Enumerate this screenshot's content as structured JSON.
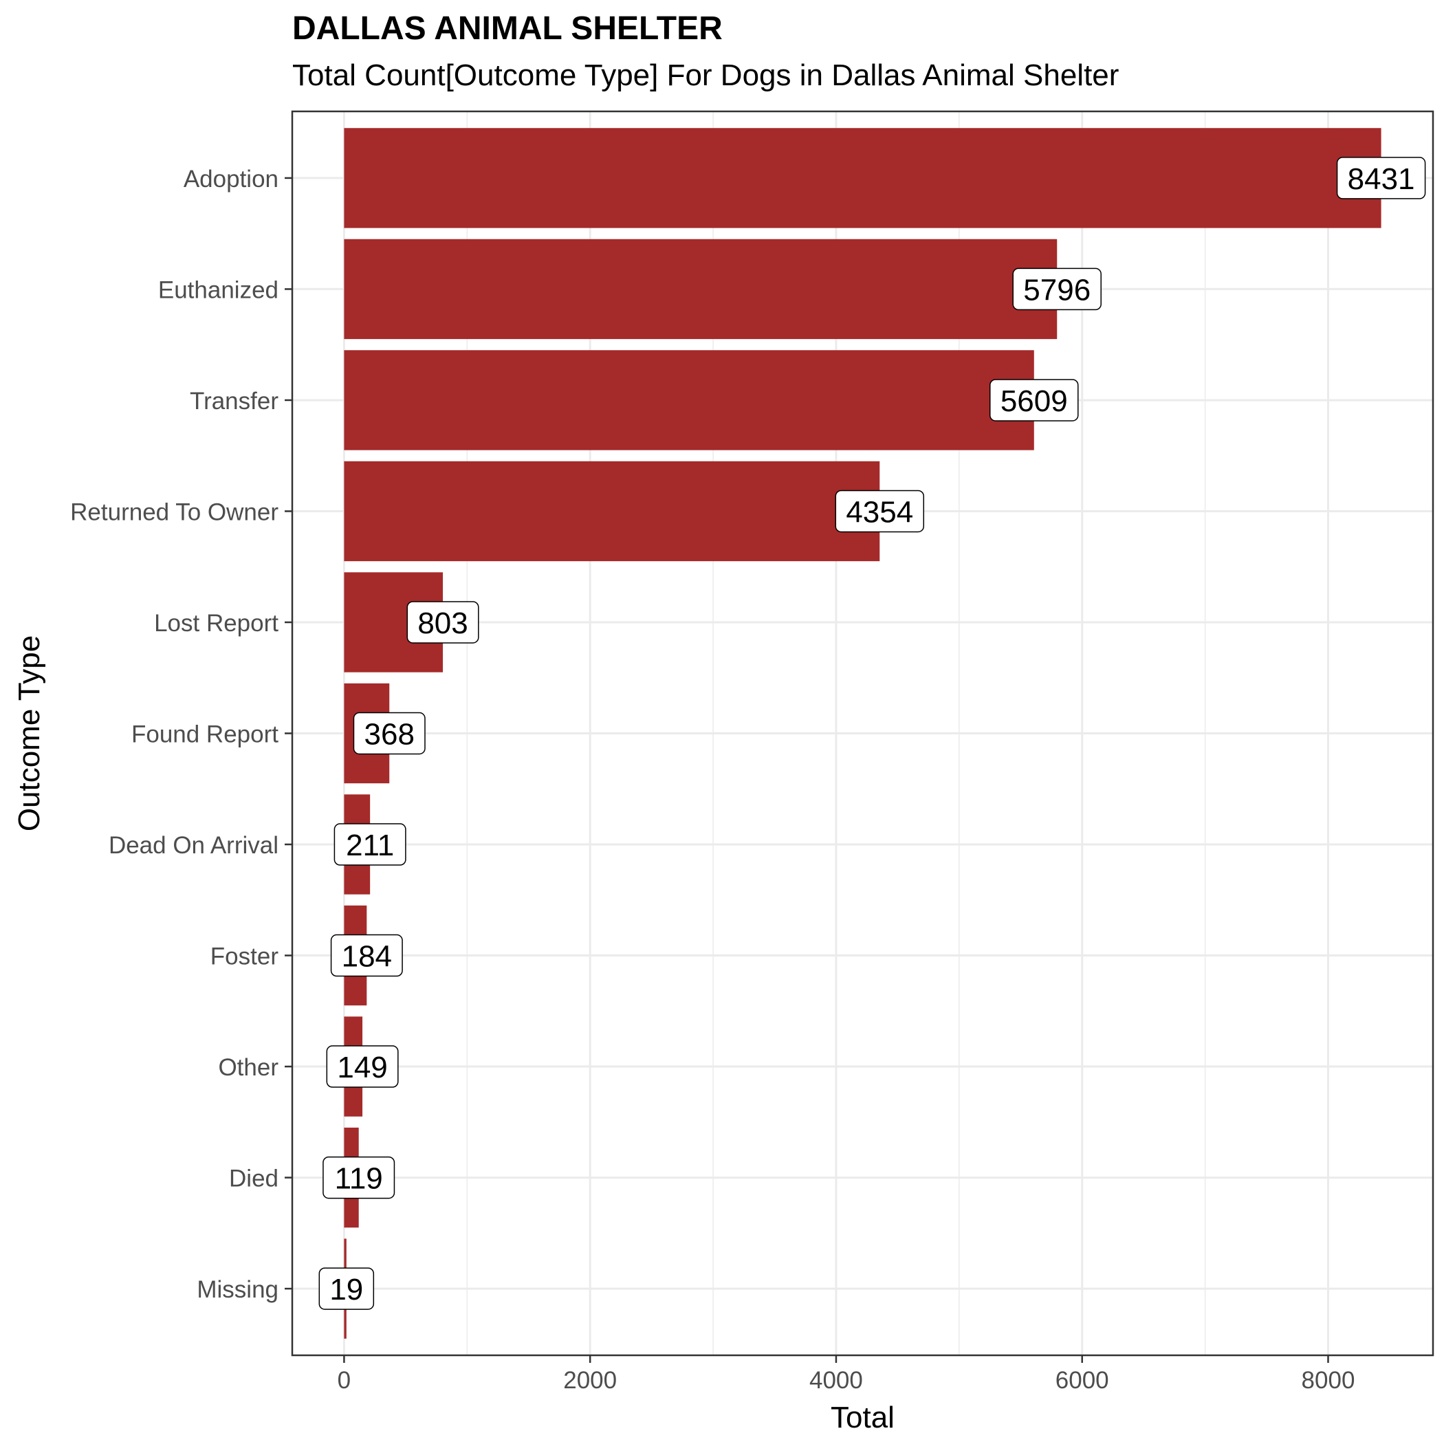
{
  "chart_data": {
    "type": "bar",
    "orientation": "horizontal",
    "title": "DALLAS ANIMAL SHELTER",
    "subtitle": "Total Count[Outcome Type] For Dogs in Dallas Animal Shelter",
    "xlabel": "Total",
    "ylabel": "Outcome Type",
    "categories": [
      "Adoption",
      "Euthanized",
      "Transfer",
      "Returned To Owner",
      "Lost Report",
      "Found Report",
      "Dead On Arrival",
      "Foster",
      "Other",
      "Died",
      "Missing"
    ],
    "values": [
      8431,
      5796,
      5609,
      4354,
      803,
      368,
      211,
      184,
      149,
      119,
      19
    ],
    "xticks": [
      0,
      2000,
      4000,
      6000,
      8000
    ],
    "xlim": [
      -421.55,
      8852.55
    ],
    "grid": true,
    "legend": "none",
    "colors": {
      "bar": "#A52A2A",
      "grid": "#EBEBEB",
      "panel_border": "#333333",
      "label_fill": "#FFFFFF"
    }
  }
}
